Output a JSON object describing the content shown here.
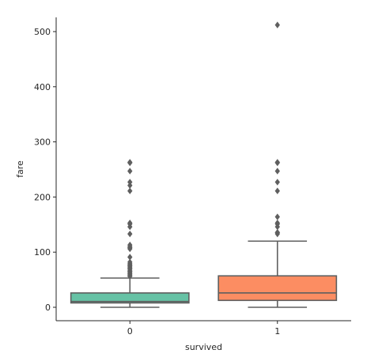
{
  "chart_data": {
    "type": "box",
    "title": "",
    "xlabel": "survived",
    "ylabel": "fare",
    "categories": [
      "0",
      "1"
    ],
    "ylim": [
      -25,
      540
    ],
    "yticks": [
      0,
      100,
      200,
      300,
      400,
      500
    ],
    "grid": false,
    "boxes": [
      {
        "category": "0",
        "color": "#66c2a5",
        "whisker_low": 0,
        "q1": 7.9,
        "median": 10.5,
        "q3": 26,
        "whisker_high": 53,
        "outliers": [
          56,
          57,
          59,
          61,
          63,
          65,
          66,
          69,
          71,
          73,
          75,
          77,
          79,
          82,
          91,
          106,
          108,
          110,
          113,
          133,
          146,
          151,
          153,
          211,
          221,
          227,
          247,
          263,
          262
        ]
      },
      {
        "category": "1",
        "color": "#fc8d62",
        "whisker_low": 0,
        "q1": 12.5,
        "median": 26,
        "q3": 57,
        "whisker_high": 120,
        "outliers": [
          133,
          135,
          136,
          146,
          151,
          153,
          164,
          211,
          227,
          247,
          262,
          263,
          512
        ]
      }
    ]
  }
}
